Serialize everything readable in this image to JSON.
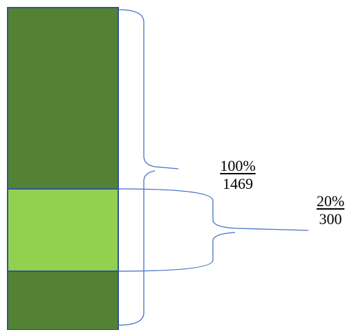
{
  "colors": {
    "segment_dark": "#548235",
    "segment_light": "#92d050",
    "outline": "#2f5597",
    "brace": "#4472c4",
    "text": "#000000"
  },
  "labels": {
    "total": {
      "percent": "100%",
      "count": "1469"
    },
    "part": {
      "percent": "20%",
      "count": "300"
    }
  }
}
